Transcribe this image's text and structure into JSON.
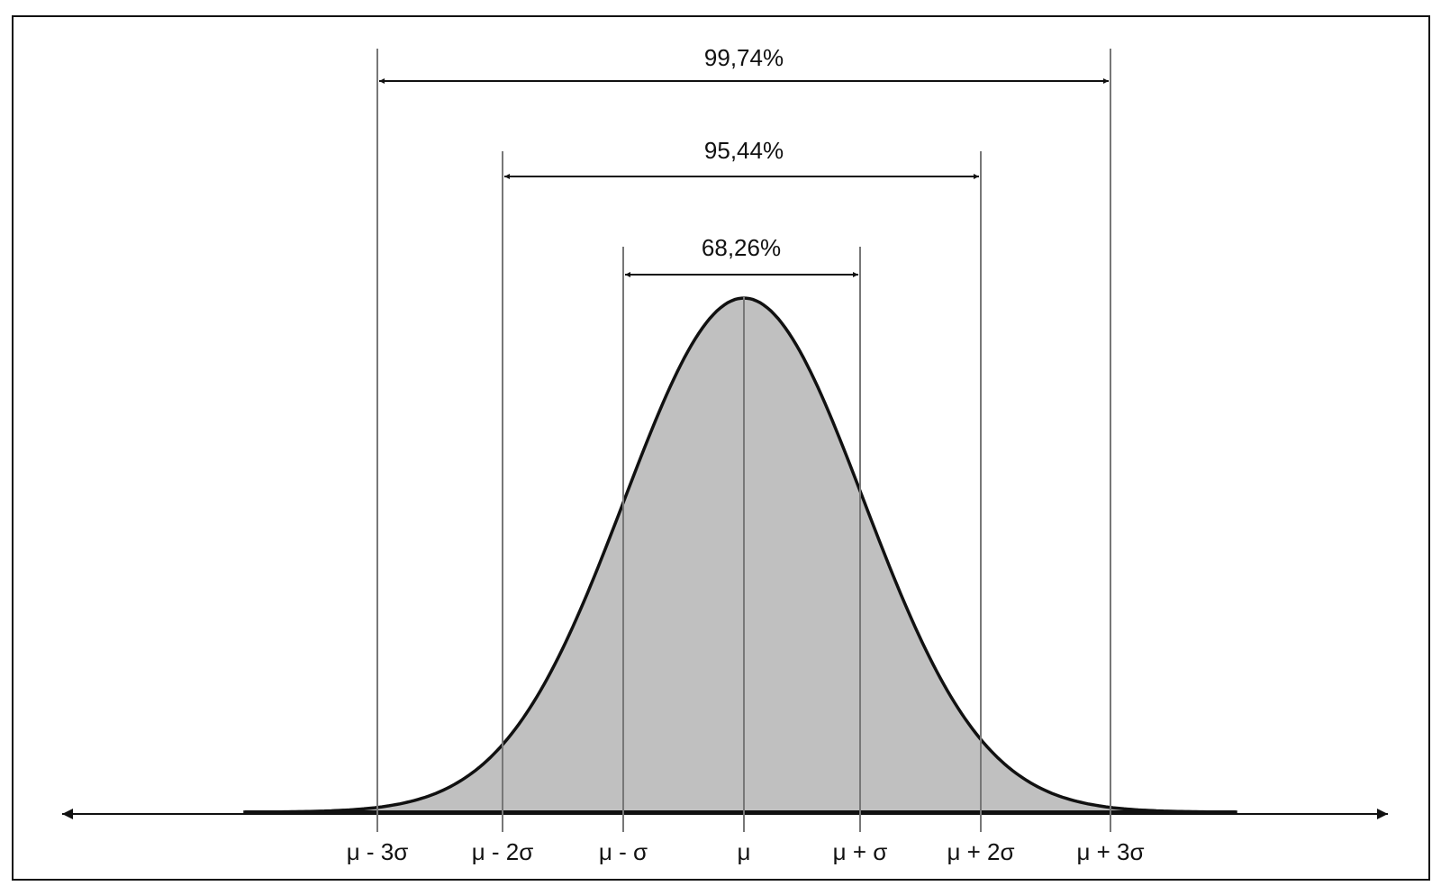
{
  "intervals": [
    {
      "label": "99,74%"
    },
    {
      "label": "95,44%"
    },
    {
      "label": "68,26%"
    }
  ],
  "axis_labels": [
    "μ - 3σ",
    "μ - 2σ",
    "μ - σ",
    "μ",
    "μ + σ",
    "μ + 2σ",
    "μ + 3σ"
  ]
}
